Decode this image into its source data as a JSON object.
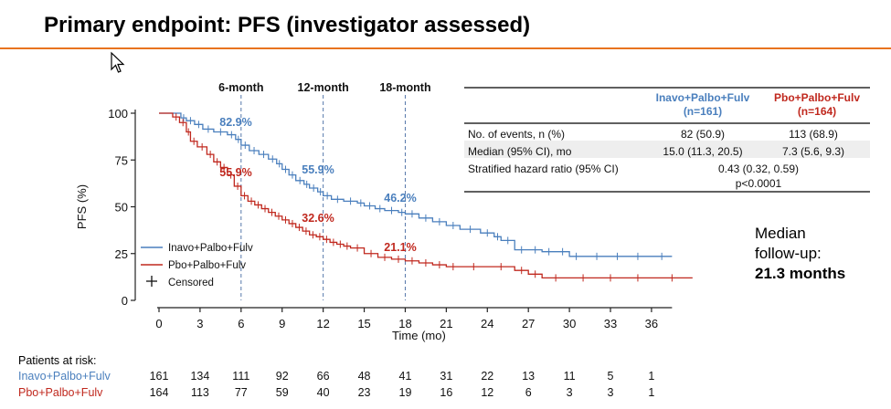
{
  "title": "Primary endpoint: PFS (investigator assessed)",
  "colors": {
    "accent_rule": "#e8731f",
    "inavo": "#4a7fbd",
    "pbo": "#c0281e"
  },
  "chart_data": {
    "type": "line",
    "subtype": "kaplan-meier",
    "xlabel": "Time (mo)",
    "ylabel": "PFS (%)",
    "xticks": [
      0,
      3,
      6,
      9,
      12,
      15,
      18,
      21,
      24,
      27,
      30,
      33,
      36
    ],
    "yticks": [
      0,
      25,
      50,
      75,
      100
    ],
    "xlim": [
      0,
      39.5
    ],
    "ylim": [
      0,
      100
    ],
    "landmarks": [
      {
        "x": 6,
        "label": "6-month",
        "inavo": "82.9%",
        "pbo": "55.9%"
      },
      {
        "x": 12,
        "label": "12-month",
        "inavo": "55.9%",
        "pbo": "32.6%"
      },
      {
        "x": 18,
        "label": "18-month",
        "inavo": "46.2%",
        "pbo": "21.1%"
      }
    ],
    "series": [
      {
        "name": "Inavo+Palbo+Fulv",
        "color": "#4a7fbd",
        "x": [
          0,
          1.6,
          2,
          2.6,
          3.2,
          4,
          5,
          5.6,
          6,
          6.6,
          7.3,
          8,
          8.6,
          9,
          9.5,
          10,
          10.6,
          11,
          11.6,
          12,
          12.6,
          13.5,
          14.5,
          15,
          15.8,
          16.5,
          17.5,
          18,
          19,
          20,
          21,
          22,
          23.5,
          24.5,
          25,
          26,
          27,
          28,
          29,
          30,
          31,
          33,
          34,
          36,
          37.5
        ],
        "y": [
          100,
          97.5,
          96,
          94,
          91.5,
          90,
          88.5,
          86,
          82.9,
          80,
          78,
          75.5,
          73,
          70,
          67,
          64,
          62,
          60,
          58,
          55.9,
          54,
          53,
          52,
          50.5,
          49,
          48,
          47,
          46.2,
          44,
          42,
          40,
          38,
          36,
          34,
          32,
          27,
          27,
          26,
          26,
          23.5,
          23.5,
          23.5,
          23.5,
          23.5,
          23.5
        ]
      },
      {
        "name": "Pbo+Palbo+Fulv",
        "color": "#c0281e",
        "x": [
          0,
          1,
          1.5,
          2,
          2.3,
          2.8,
          3.5,
          4,
          4.5,
          5,
          5.5,
          6,
          6.5,
          7,
          7.5,
          8,
          8.5,
          9,
          9.5,
          10,
          10.5,
          11,
          11.5,
          12,
          12.5,
          13,
          13.5,
          14,
          15,
          16,
          17,
          18,
          19,
          20,
          21,
          22,
          24,
          26,
          27,
          28,
          30,
          32,
          34,
          36,
          39
        ],
        "y": [
          100,
          98,
          95,
          90,
          85,
          82,
          78,
          74,
          71,
          67,
          61,
          55.9,
          53,
          51,
          49,
          47,
          45,
          43,
          41,
          39,
          37,
          35,
          34,
          32.6,
          31,
          30,
          29,
          28,
          25,
          23,
          22,
          21.1,
          20,
          19,
          18,
          18,
          18,
          16,
          14,
          12,
          12,
          12,
          12,
          12,
          12
        ]
      }
    ],
    "legend": {
      "position": "bottom-left",
      "censored_label": "Censored"
    }
  },
  "table": {
    "col1_header": [
      "Inavo+Palbo+Fulv",
      "(n=161)"
    ],
    "col2_header": [
      "Pbo+Palbo+Fulv",
      "(n=164)"
    ],
    "rows": [
      {
        "label": "No. of events, n (%)",
        "c1": "82 (50.9)",
        "c2": "113 (68.9)"
      },
      {
        "label": "Median (95% CI), mo",
        "c1": "15.0 (11.3, 20.5)",
        "c2": "7.3 (5.6, 9.3)"
      },
      {
        "label": "Stratified hazard ratio (95% CI)",
        "c12": "0.43 (0.32, 0.59)",
        "c12b": "p<0.0001"
      }
    ]
  },
  "followup": {
    "line1": "Median",
    "line2": "follow-up:",
    "line3": "21.3 months"
  },
  "risk": {
    "title": "Patients at risk:",
    "rows": [
      {
        "name": "Inavo+Palbo+Fulv",
        "color": "#4a7fbd",
        "values": [
          "161",
          "134",
          "111",
          "92",
          "66",
          "48",
          "41",
          "31",
          "22",
          "13",
          "11",
          "5",
          "1"
        ]
      },
      {
        "name": "Pbo+Palbo+Fulv",
        "color": "#c0281e",
        "values": [
          "164",
          "113",
          "77",
          "59",
          "40",
          "23",
          "19",
          "16",
          "12",
          "6",
          "3",
          "3",
          "1"
        ]
      }
    ]
  }
}
